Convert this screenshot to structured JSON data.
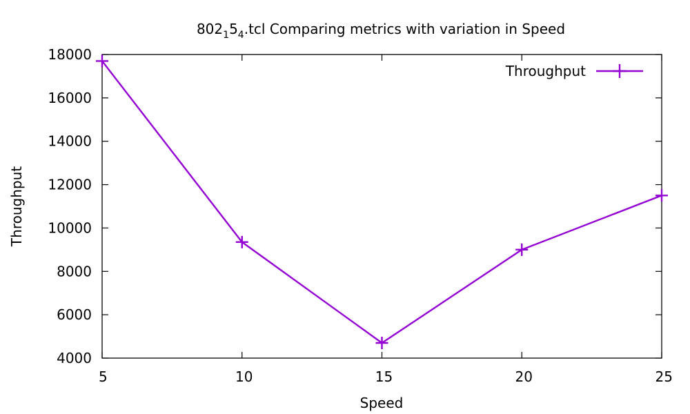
{
  "chart_data": {
    "type": "line",
    "title": {
      "prefix": "802",
      "sub1": "1",
      "mid": "5",
      "sub2": "4",
      "suffix": ".tcl Comparing metrics with variation in Speed"
    },
    "xlabel": "Speed",
    "ylabel": "Throughput",
    "x": [
      5,
      10,
      15,
      20,
      25
    ],
    "series": [
      {
        "name": "Throughput",
        "color": "#9400d3",
        "marker": "plus",
        "values": [
          17700,
          9350,
          4700,
          9000,
          11500
        ]
      }
    ],
    "xlim": [
      5,
      25
    ],
    "ylim": [
      4000,
      18000
    ],
    "xticks": [
      5,
      10,
      15,
      20,
      25
    ],
    "yticks": [
      4000,
      6000,
      8000,
      10000,
      12000,
      14000,
      16000,
      18000
    ],
    "grid": false,
    "legend_position": "top-right"
  }
}
